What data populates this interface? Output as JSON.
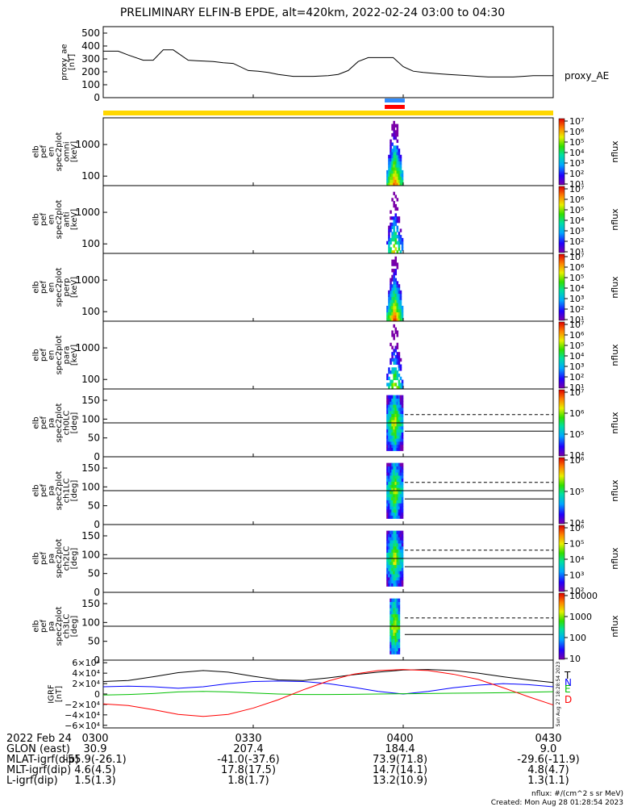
{
  "title": "PRELIMINARY ELFIN-B EPDE, alt=420km, 2022-02-24 03:00 to 04:30",
  "colors": {
    "panel_line": "#000000",
    "yellow_bar": "#ffd700",
    "blue_bar": "#2f8cff",
    "red_bar": "#ff0000",
    "bx": "#0000ff",
    "by": "#00c000",
    "bz": "#ff0000",
    "bt": "#000000"
  },
  "time_axis": {
    "start": "03:00",
    "end": "04:30",
    "tick_labels": [
      "0300",
      "0330",
      "0400",
      "0430"
    ],
    "tick_minutes": [
      0,
      30,
      60,
      90
    ]
  },
  "footer": {
    "rows": [
      {
        "label": "2022 Feb 24",
        "values": [
          "0300",
          "0330",
          "0400",
          "0430"
        ]
      },
      {
        "label": "GLON (east)",
        "values": [
          "30.9",
          "207.4",
          "184.4",
          "9.0"
        ]
      },
      {
        "label": "MLAT-igrf(dip)",
        "values": [
          "-55.9(-26.1)",
          "-41.0(-37.6)",
          "73.9(71.8)",
          "-29.6(-11.9)"
        ]
      },
      {
        "label": "MLT-igrf(dip)",
        "values": [
          "4.6(4.5)",
          "17.8(17.5)",
          "14.7(14.1)",
          "4.8(4.7)"
        ]
      },
      {
        "label": "L-igrf(dip)",
        "values": [
          "1.5(1.3)",
          "1.8(1.7)",
          "13.2(10.9)",
          "1.3(1.1)"
        ]
      }
    ],
    "units_note": "nflux: #/(cm^2 s sr MeV)",
    "created": "Created: Mon Aug 28 01:28:54 2023",
    "side_stamp": "Sun Aug 27 18:28:54 2023"
  },
  "chart_data": [
    {
      "type": "line",
      "name": "proxy_ae",
      "ylabel": "proxy_ae\n[nT]",
      "legend": "proxy_AE",
      "ylim": [
        0,
        550
      ],
      "yticks": [
        0,
        100,
        200,
        300,
        400,
        500
      ],
      "series": [
        {
          "name": "proxy_AE",
          "x_minutes": [
            0,
            3,
            5,
            8,
            10,
            12,
            14,
            17,
            19,
            22,
            24,
            26,
            29,
            31,
            33,
            35,
            38,
            40,
            42,
            45,
            47,
            49,
            51,
            53,
            56,
            58,
            60,
            62,
            64,
            67,
            69,
            71,
            73,
            75,
            77,
            79,
            82,
            84,
            86,
            88,
            90
          ],
          "values": [
            360,
            360,
            330,
            290,
            290,
            370,
            370,
            290,
            285,
            280,
            270,
            265,
            210,
            205,
            195,
            180,
            165,
            165,
            165,
            170,
            180,
            210,
            280,
            310,
            310,
            310,
            240,
            205,
            195,
            185,
            180,
            175,
            170,
            165,
            160,
            160,
            160,
            165,
            170,
            170,
            170
          ]
        }
      ]
    },
    {
      "type": "heatmap",
      "name": "elb_pef_en_spec2plot_omni",
      "ylabel": "elb\npef\nen\nspec2plot\nomni\n[keV]",
      "yscale": "log",
      "ylim": [
        50,
        7000
      ],
      "yticks": [
        100,
        1000
      ],
      "colorbar": {
        "label": "nflux",
        "scale": "log",
        "range": [
          10,
          10000000
        ],
        "tick_labels": [
          "10¹",
          "10²",
          "10³",
          "10⁴",
          "10⁵",
          "10⁶",
          "10⁷"
        ]
      },
      "data_window_minutes": [
        56.3,
        60.3
      ]
    },
    {
      "type": "heatmap",
      "name": "elb_pef_en_spec2plot_anti",
      "ylabel": "elb\npef\nen\nspec2plot\nanti\n[keV]",
      "yscale": "log",
      "ylim": [
        50,
        7000
      ],
      "yticks": [
        100,
        1000
      ],
      "colorbar": {
        "label": "nflux",
        "scale": "log",
        "range": [
          10,
          10000000
        ],
        "tick_labels": [
          "10¹",
          "10²",
          "10³",
          "10⁴",
          "10⁵",
          "10⁶",
          "10⁷"
        ]
      },
      "data_window_minutes": [
        56.3,
        60.3
      ]
    },
    {
      "type": "heatmap",
      "name": "elb_pef_en_spec2plot_perp",
      "ylabel": "elb\npef\nen\nspec2plot\nperp\n[keV]",
      "yscale": "log",
      "ylim": [
        50,
        7000
      ],
      "yticks": [
        100,
        1000
      ],
      "colorbar": {
        "label": "nflux",
        "scale": "log",
        "range": [
          10,
          10000000
        ],
        "tick_labels": [
          "10¹",
          "10²",
          "10³",
          "10⁴",
          "10⁵",
          "10⁶",
          "10⁷"
        ]
      },
      "data_window_minutes": [
        56.3,
        60.3
      ]
    },
    {
      "type": "heatmap",
      "name": "elb_pef_en_spec2plot_para",
      "ylabel": "elb\npef\nen\nspec2plot\npara\n[keV]",
      "yscale": "log",
      "ylim": [
        50,
        7000
      ],
      "yticks": [
        100,
        1000
      ],
      "colorbar": {
        "label": "nflux",
        "scale": "log",
        "range": [
          10,
          10000000
        ],
        "tick_labels": [
          "10¹",
          "10²",
          "10³",
          "10⁴",
          "10⁵",
          "10⁶",
          "10⁷"
        ]
      },
      "data_window_minutes": [
        56.3,
        60.3
      ]
    },
    {
      "type": "heatmap",
      "name": "elb_pef_pa_spec2plot_ch0LC",
      "ylabel": "elb\npef\npa\nspec2plot\nch0LC\n[deg]",
      "ylim": [
        0,
        180
      ],
      "yticks": [
        0,
        50,
        100,
        150
      ],
      "colorbar": {
        "label": "nflux",
        "scale": "log",
        "range": [
          1000,
          10000000
        ],
        "tick_labels": [
          "10⁴",
          "10⁵",
          "10⁶",
          "10⁷"
        ]
      },
      "data_window_minutes": [
        56.3,
        60.3
      ],
      "reference_lines_deg": [
        90,
        68,
        112
      ]
    },
    {
      "type": "heatmap",
      "name": "elb_pef_pa_spec2plot_ch1LC",
      "ylabel": "elb\npef\npa\nspec2plot\nch1LC\n[deg]",
      "ylim": [
        0,
        180
      ],
      "yticks": [
        0,
        50,
        100,
        150
      ],
      "colorbar": {
        "label": "nflux",
        "scale": "log",
        "range": [
          1000,
          2000000
        ],
        "tick_labels": [
          "10⁴",
          "10⁵",
          "10⁶"
        ]
      },
      "data_window_minutes": [
        56.3,
        60.3
      ],
      "reference_lines_deg": [
        90,
        68,
        112
      ]
    },
    {
      "type": "heatmap",
      "name": "elb_pef_pa_spec2plot_ch2LC",
      "ylabel": "elb\npef\npa\nspec2plot\nch2LC\n[deg]",
      "ylim": [
        0,
        180
      ],
      "yticks": [
        0,
        50,
        100,
        150
      ],
      "colorbar": {
        "label": "nflux",
        "scale": "log",
        "range": [
          100,
          1000000
        ],
        "tick_labels": [
          "10²",
          "10³",
          "10⁴",
          "10⁵",
          "10⁶"
        ]
      },
      "data_window_minutes": [
        56.3,
        60.3
      ],
      "reference_lines_deg": [
        90,
        68,
        112
      ]
    },
    {
      "type": "heatmap",
      "name": "elb_pef_pa_spec2plot_ch3LC",
      "ylabel": "elb\npef\npa\nspec2plot\nch3LC\n[deg]",
      "ylim": [
        0,
        180
      ],
      "yticks": [
        0,
        50,
        100,
        150
      ],
      "colorbar": {
        "label": "nflux",
        "scale": "log",
        "range": [
          10,
          10000
        ],
        "tick_labels": [
          "10",
          "100",
          "1000",
          "10000"
        ]
      },
      "data_window_minutes": [
        56.3,
        60.3
      ],
      "reference_lines_deg": [
        90,
        68,
        112
      ]
    },
    {
      "type": "line",
      "name": "IGRF",
      "ylabel": "IGRF\n[nT]",
      "ylim": [
        -65000,
        65000
      ],
      "ytick_values": [
        60000,
        40000,
        20000,
        0,
        -20000,
        -40000,
        -60000
      ],
      "ytick_labels": [
        "6×10⁴",
        "4×10⁴",
        "2×10⁴",
        "0",
        "−2×10⁴",
        "−4×10⁴",
        "−6×10⁴"
      ],
      "series": [
        {
          "name": "T",
          "color": "#000000",
          "x_minutes": [
            0,
            5,
            10,
            15,
            20,
            25,
            30,
            35,
            40,
            45,
            50,
            55,
            60,
            65,
            70,
            75,
            80,
            85,
            90
          ],
          "values": [
            24000,
            26000,
            33000,
            41000,
            45000,
            42000,
            34000,
            27000,
            26000,
            31000,
            37000,
            42000,
            46000,
            47000,
            45000,
            40000,
            33000,
            27000,
            22000
          ]
        },
        {
          "name": "N",
          "color": "#0000ff",
          "x_minutes": [
            0,
            5,
            10,
            15,
            20,
            25,
            30,
            35,
            40,
            45,
            50,
            55,
            60,
            65,
            70,
            75,
            80,
            85,
            90
          ],
          "values": [
            14000,
            15000,
            14000,
            11000,
            14000,
            20000,
            24000,
            25000,
            24000,
            20000,
            13000,
            5000,
            0,
            5000,
            12000,
            17000,
            20000,
            18000,
            14000
          ]
        },
        {
          "name": "E",
          "color": "#00c000",
          "x_minutes": [
            0,
            5,
            10,
            15,
            20,
            25,
            30,
            35,
            40,
            45,
            50,
            55,
            60,
            65,
            70,
            75,
            80,
            85,
            90
          ],
          "values": [
            -2000,
            -1000,
            1000,
            4000,
            5000,
            4000,
            2000,
            0,
            -1000,
            -1000,
            -500,
            0,
            500,
            1000,
            1500,
            2000,
            2500,
            3500,
            4500
          ]
        },
        {
          "name": "D",
          "color": "#ff0000",
          "x_minutes": [
            0,
            5,
            10,
            15,
            20,
            25,
            30,
            35,
            40,
            45,
            50,
            55,
            60,
            65,
            70,
            75,
            80,
            85,
            90
          ],
          "values": [
            -19000,
            -22000,
            -30000,
            -39000,
            -43000,
            -39000,
            -27000,
            -11000,
            8000,
            25000,
            38000,
            45000,
            47000,
            45000,
            38000,
            28000,
            12000,
            -5000,
            -21000
          ]
        }
      ]
    }
  ]
}
